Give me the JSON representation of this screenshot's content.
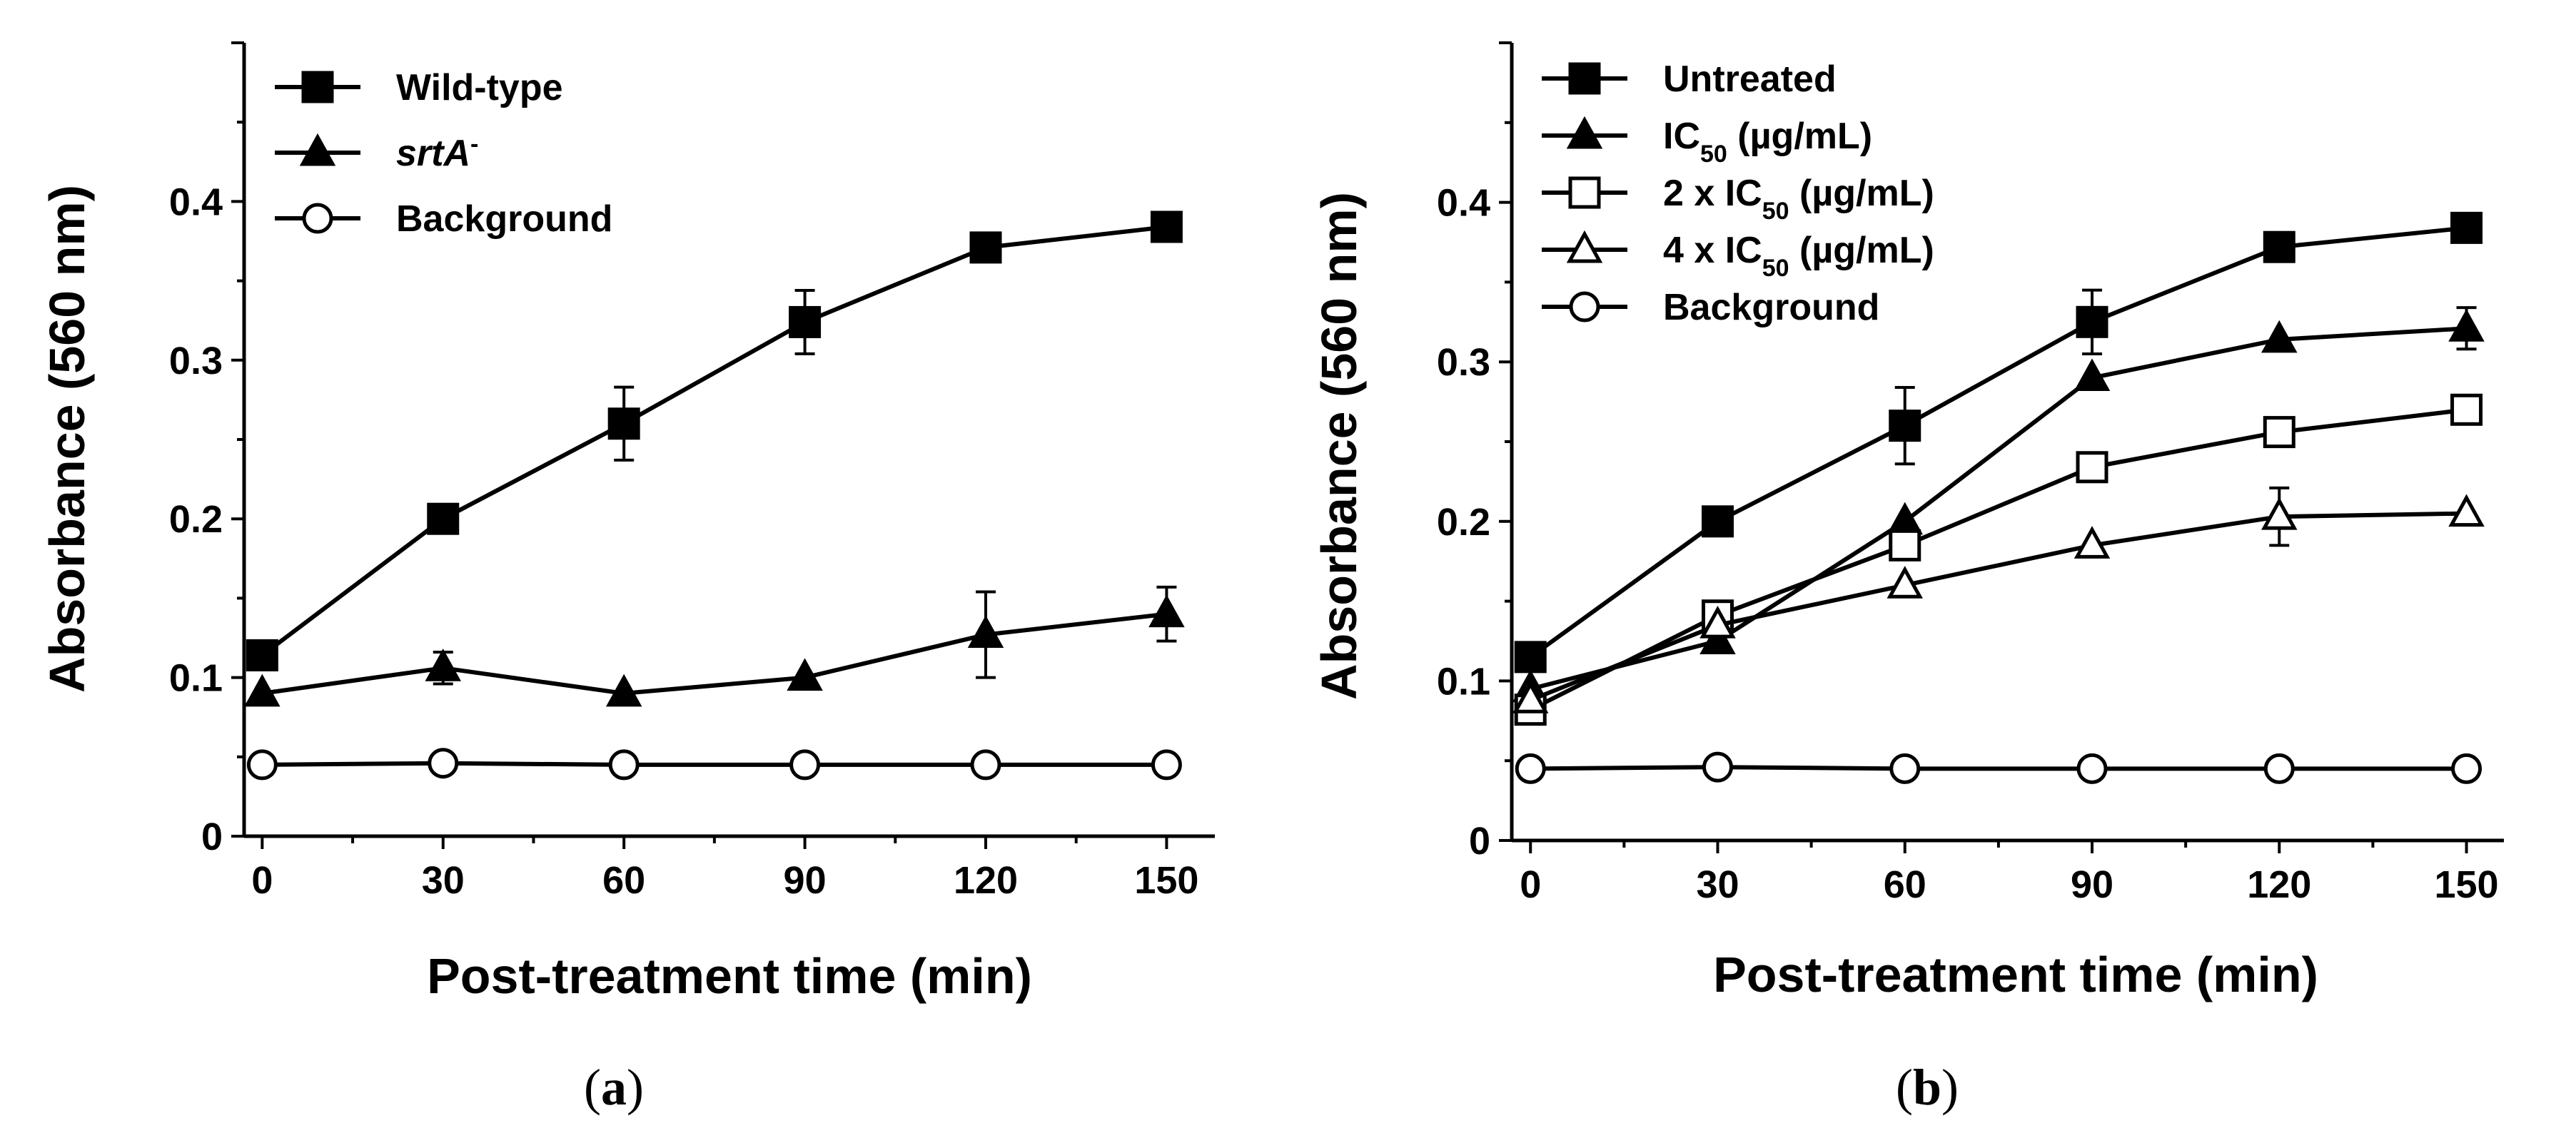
{
  "chart_data": [
    {
      "type": "line",
      "panel": "a",
      "caption_parts": [
        "(",
        "a",
        ")"
      ],
      "xlabel": "Post-treatment time (min)",
      "ylabel": "Absorbance (560 nm)",
      "x": [
        0,
        30,
        60,
        90,
        120,
        150
      ],
      "xticks": [
        "0",
        "30",
        "60",
        "90",
        "120",
        "150"
      ],
      "yticks": [
        {
          "value": 0,
          "label": "0"
        },
        {
          "value": 0.1,
          "label": "0.1"
        },
        {
          "value": 0.2,
          "label": "0.2"
        },
        {
          "value": 0.3,
          "label": "0.3"
        },
        {
          "value": 0.4,
          "label": "0.4"
        }
      ],
      "xlim": [
        -3,
        158
      ],
      "ylim": [
        0,
        0.5
      ],
      "legend": "top-left",
      "series": [
        {
          "name": "Wild-type",
          "legend_parts": [
            {
              "text": "Wild-type",
              "style": "normal"
            }
          ],
          "marker": "square",
          "fill": "#000000",
          "values": [
            0.114,
            0.2,
            0.26,
            0.324,
            0.371,
            0.384
          ],
          "errors": [
            null,
            null,
            0.023,
            0.02,
            null,
            null
          ]
        },
        {
          "name": "srtA-",
          "legend_parts": [
            {
              "text": "srtA",
              "style": "italic"
            },
            {
              "text": "-",
              "style": "sup"
            }
          ],
          "marker": "triangle",
          "fill": "#000000",
          "values": [
            0.09,
            0.106,
            0.09,
            0.1,
            0.127,
            0.14
          ],
          "errors": [
            null,
            0.01,
            null,
            null,
            0.027,
            0.017
          ]
        },
        {
          "name": "Background",
          "legend_parts": [
            {
              "text": "Background",
              "style": "normal"
            }
          ],
          "marker": "circle",
          "fill": "#ffffff",
          "values": [
            0.045,
            0.046,
            0.045,
            0.045,
            0.045,
            0.045
          ],
          "errors": [
            null,
            null,
            null,
            null,
            null,
            null
          ]
        }
      ]
    },
    {
      "type": "line",
      "panel": "b",
      "caption_parts": [
        "(",
        "b",
        ")"
      ],
      "xlabel": "Post-treatment time (min)",
      "ylabel": "Absorbance (560 nm)",
      "x": [
        0,
        30,
        60,
        90,
        120,
        150
      ],
      "xticks": [
        "0",
        "30",
        "60",
        "90",
        "120",
        "150"
      ],
      "yticks": [
        {
          "value": 0,
          "label": "0"
        },
        {
          "value": 0.1,
          "label": "0.1"
        },
        {
          "value": 0.2,
          "label": "0.2"
        },
        {
          "value": 0.3,
          "label": "0.3"
        },
        {
          "value": 0.4,
          "label": "0.4"
        }
      ],
      "xlim": [
        -3,
        156
      ],
      "ylim": [
        0,
        0.5
      ],
      "legend": "top-left",
      "series": [
        {
          "name": "Untreated",
          "legend_parts": [
            {
              "text": "Untreated",
              "style": "normal"
            }
          ],
          "marker": "square",
          "fill": "#000000",
          "values": [
            0.115,
            0.2,
            0.26,
            0.325,
            0.372,
            0.384
          ],
          "errors": [
            null,
            null,
            0.024,
            0.02,
            null,
            null
          ]
        },
        {
          "name": "IC50 (µg/mL)",
          "legend_parts": [
            {
              "text": "IC",
              "style": "normal"
            },
            {
              "text": "50",
              "style": "sub"
            },
            {
              "text": " (µg/mL)",
              "style": "normal"
            }
          ],
          "marker": "triangle",
          "fill": "#000000",
          "values": [
            0.095,
            0.125,
            0.2,
            0.29,
            0.314,
            0.321
          ],
          "errors": [
            null,
            null,
            null,
            null,
            null,
            0.013
          ]
        },
        {
          "name": "2 x IC50 (µg/mL)",
          "legend_parts": [
            {
              "text": "2 x IC",
              "style": "normal"
            },
            {
              "text": "50",
              "style": "sub"
            },
            {
              "text": " (µg/mL)",
              "style": "normal"
            }
          ],
          "marker": "square",
          "fill": "#ffffff",
          "values": [
            0.082,
            0.141,
            0.185,
            0.234,
            0.256,
            0.27
          ],
          "errors": [
            null,
            null,
            null,
            null,
            null,
            null
          ]
        },
        {
          "name": "4 x IC50 (µg/mL)",
          "legend_parts": [
            {
              "text": "4 x IC",
              "style": "normal"
            },
            {
              "text": "50",
              "style": "sub"
            },
            {
              "text": " (µg/mL)",
              "style": "normal"
            }
          ],
          "marker": "triangle",
          "fill": "#ffffff",
          "values": [
            0.088,
            0.135,
            0.16,
            0.185,
            0.203,
            0.205
          ],
          "errors": [
            null,
            null,
            null,
            null,
            0.018,
            null
          ]
        },
        {
          "name": "Background",
          "legend_parts": [
            {
              "text": "Background",
              "style": "normal"
            }
          ],
          "marker": "circle",
          "fill": "#ffffff",
          "values": [
            0.045,
            0.046,
            0.045,
            0.045,
            0.045,
            0.045
          ],
          "errors": [
            null,
            null,
            null,
            null,
            null,
            null
          ]
        }
      ]
    }
  ]
}
